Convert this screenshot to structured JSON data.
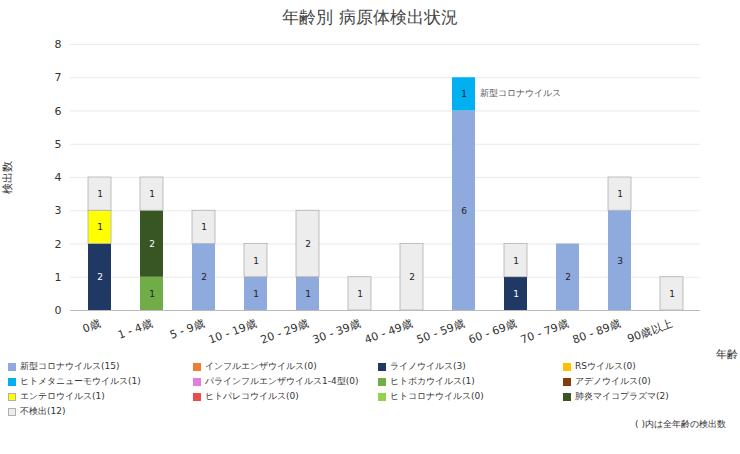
{
  "chart_data": {
    "type": "bar",
    "title": "年齢別 病原体検出状況",
    "x_label": "年齢",
    "y_label": "検出数",
    "stacked": true,
    "data_labels": true,
    "grid": true,
    "legend": "bottom",
    "ylim": [
      0,
      8
    ],
    "yticks": [
      0,
      1,
      2,
      3,
      4,
      5,
      6,
      7,
      8
    ],
    "categories": [
      "0歳",
      "1 - 4歳",
      "5 - 9歳",
      "10 - 19歳",
      "20 - 29歳",
      "30 - 39歳",
      "40 - 49歳",
      "50 - 59歳",
      "60 - 69歳",
      "70 - 79歳",
      "80 - 89歳",
      "90歳以上"
    ],
    "series": [
      {
        "name": "新型コロナウイルス(15)",
        "color": "#8faadc",
        "values": [
          0,
          0,
          2,
          1,
          1,
          0,
          0,
          6,
          0,
          2,
          3,
          0
        ]
      },
      {
        "name": "インフルエンザウイルス(0)",
        "color": "#ed7d31",
        "values": [
          0,
          0,
          0,
          0,
          0,
          0,
          0,
          0,
          0,
          0,
          0,
          0
        ]
      },
      {
        "name": "ライノウイルス(3)",
        "color": "#203864",
        "values": [
          2,
          0,
          0,
          0,
          0,
          0,
          0,
          0,
          1,
          0,
          0,
          0
        ]
      },
      {
        "name": "RSウイルス(0)",
        "color": "#ffc000",
        "values": [
          0,
          0,
          0,
          0,
          0,
          0,
          0,
          0,
          0,
          0,
          0,
          0
        ]
      },
      {
        "name": "ヒトメタニューモウイルス(1)",
        "color": "#00b0f0",
        "values": [
          0,
          0,
          0,
          0,
          0,
          0,
          0,
          1,
          0,
          0,
          0,
          0
        ]
      },
      {
        "name": "パラインフルエンザウイルス1-4型(0)",
        "color": "#e07ee0",
        "values": [
          0,
          0,
          0,
          0,
          0,
          0,
          0,
          0,
          0,
          0,
          0,
          0
        ]
      },
      {
        "name": "ヒトボカウイルス(1)",
        "color": "#70ad47",
        "values": [
          0,
          1,
          0,
          0,
          0,
          0,
          0,
          0,
          0,
          0,
          0,
          0
        ]
      },
      {
        "name": "アデノウイルス(0)",
        "color": "#843c0c",
        "values": [
          0,
          0,
          0,
          0,
          0,
          0,
          0,
          0,
          0,
          0,
          0,
          0
        ]
      },
      {
        "name": "エンテロウイルス(1)",
        "color": "#ffff00",
        "values": [
          1,
          0,
          0,
          0,
          0,
          0,
          0,
          0,
          0,
          0,
          0,
          0
        ]
      },
      {
        "name": "ヒトパレコウイルス(0)",
        "color": "#e84c4c",
        "values": [
          0,
          0,
          0,
          0,
          0,
          0,
          0,
          0,
          0,
          0,
          0,
          0
        ]
      },
      {
        "name": "ヒトコロナウイルス(0)",
        "color": "#92d050",
        "values": [
          0,
          0,
          0,
          0,
          0,
          0,
          0,
          0,
          0,
          0,
          0,
          0
        ]
      },
      {
        "name": "肺炎マイコプラズマ(2)",
        "color": "#375623",
        "values": [
          0,
          2,
          0,
          0,
          0,
          0,
          0,
          0,
          0,
          0,
          0,
          0
        ]
      },
      {
        "name": "不検出(12)",
        "color": "#ededed",
        "values": [
          1,
          1,
          1,
          1,
          2,
          1,
          2,
          0,
          1,
          0,
          1,
          1
        ]
      }
    ],
    "annotations": [
      {
        "text": "新型コロナウイルス",
        "category": "50 - 59歳",
        "series": "新型コロナウイルス(15)"
      }
    ],
    "note": "( )内は全年齢の検出数"
  }
}
